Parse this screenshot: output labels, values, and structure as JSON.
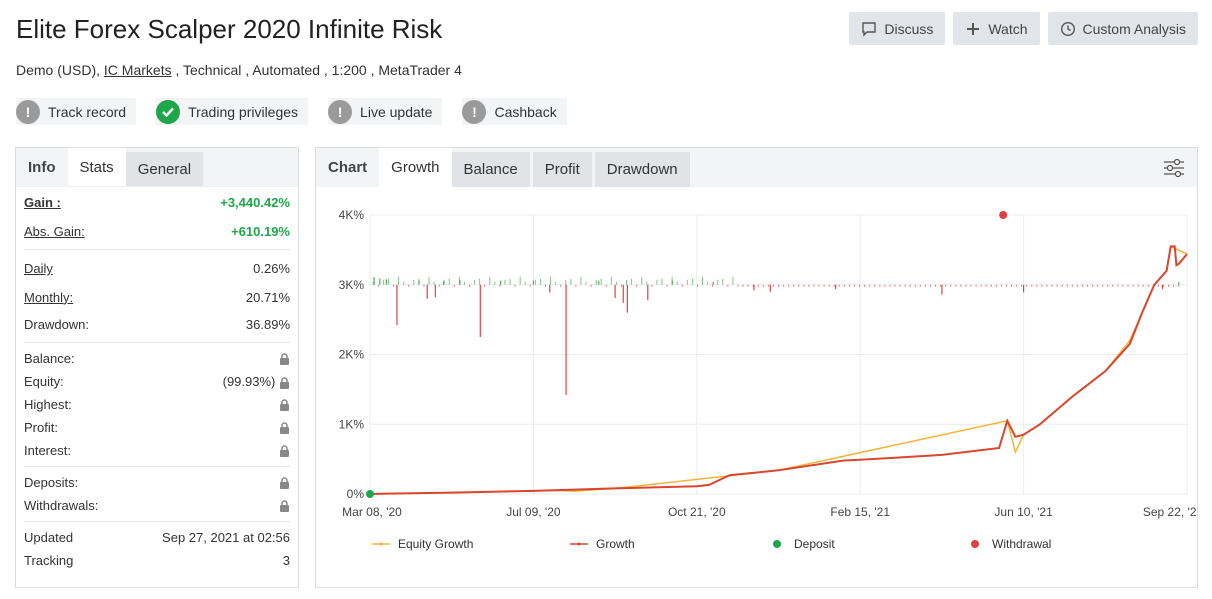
{
  "header": {
    "title": "Elite Forex Scalper 2020 Infinite Risk",
    "subtitle_pre": "Demo (USD),",
    "broker": "IC Markets",
    "subtitle_post": ", Technical , Automated , 1:200 , MetaTrader 4"
  },
  "actions": {
    "discuss": "Discuss",
    "watch": "Watch",
    "custom_analysis": "Custom Analysis"
  },
  "badges": [
    {
      "label": "Track record",
      "status": "warning"
    },
    {
      "label": "Trading privileges",
      "status": "verified"
    },
    {
      "label": "Live update",
      "status": "warning"
    },
    {
      "label": "Cashback",
      "status": "warning"
    }
  ],
  "left_tabs": {
    "info": "Info",
    "stats": "Stats",
    "general": "General"
  },
  "stats": {
    "gain_label": "Gain :",
    "gain": "+3,440.42%",
    "abs_gain_label": "Abs. Gain:",
    "abs_gain": "+610.19%",
    "daily_label": "Daily",
    "daily": "0.26%",
    "monthly_label": "Monthly:",
    "monthly": "20.71%",
    "drawdown_label": "Drawdown:",
    "drawdown": "36.89%",
    "balance_label": "Balance:",
    "equity_label": "Equity:",
    "equity": "(99.93%)",
    "highest_label": "Highest:",
    "profit_label": "Profit:",
    "interest_label": "Interest:",
    "deposits_label": "Deposits:",
    "withdrawals_label": "Withdrawals:",
    "updated_label": "Updated",
    "updated": "Sep 27, 2021 at 02:56",
    "tracking_label": "Tracking",
    "tracking": "3"
  },
  "chart_tabs": {
    "chart": "Chart",
    "growth": "Growth",
    "balance": "Balance",
    "profit": "Profit",
    "drawdown": "Drawdown"
  },
  "chart_data": {
    "type": "line",
    "x_ticks": [
      "Mar 08, '20",
      "Jul 09, '20",
      "Oct 21, '20",
      "Feb 15, '21",
      "Jun 10, '21",
      "Sep 22, '21"
    ],
    "y_ticks": [
      "0%",
      "1K%",
      "2K%",
      "3K%",
      "4K%"
    ],
    "ylim": [
      0,
      4000
    ],
    "series": [
      {
        "name": "Growth",
        "color": "#d9472f",
        "x": [
          0,
          0.1,
          0.2,
          0.3,
          0.4,
          0.415,
          0.44,
          0.5,
          0.58,
          0.6,
          0.7,
          0.77,
          0.78,
          0.79,
          0.8,
          0.82,
          0.86,
          0.9,
          0.93,
          0.945,
          0.96,
          0.975,
          0.98,
          0.985,
          0.987,
          0.99,
          1.0
        ],
        "y": [
          0,
          20,
          45,
          80,
          110,
          130,
          270,
          340,
          480,
          490,
          560,
          660,
          1050,
          820,
          850,
          1000,
          1400,
          1760,
          2150,
          2600,
          3000,
          3200,
          3550,
          3550,
          3280,
          3300,
          3440
        ]
      },
      {
        "name": "Equity Growth",
        "color": "#f2b43a",
        "x": [
          0,
          0.1,
          0.23,
          0.25,
          0.3,
          0.5,
          0.78,
          0.79,
          0.8,
          0.82,
          0.86,
          0.9,
          0.93,
          0.945,
          0.96,
          0.975,
          0.98,
          1.0
        ],
        "y": [
          0,
          20,
          50,
          40,
          80,
          340,
          1050,
          600,
          850,
          1000,
          1400,
          1760,
          2200,
          2600,
          3000,
          3200,
          3550,
          3440
        ]
      }
    ],
    "deposit": {
      "name": "Deposit",
      "color": "#1ea64b",
      "x": 0,
      "y": 0
    },
    "withdrawal": {
      "name": "Withdrawal",
      "color": "#e04040",
      "x": 0.775,
      "y": 4000
    },
    "bars_baseline": 3000,
    "bars_up_color": "#4caf50",
    "bars_down_color": "#e04040",
    "bars": [
      {
        "x": 0.005,
        "h": 110
      },
      {
        "x": 0.012,
        "h": 90
      },
      {
        "x": 0.02,
        "h": 80
      },
      {
        "x": 0.033,
        "h": -580
      },
      {
        "x": 0.06,
        "h": 60
      },
      {
        "x": 0.07,
        "h": -200
      },
      {
        "x": 0.08,
        "h": -180
      },
      {
        "x": 0.09,
        "h": 50
      },
      {
        "x": 0.11,
        "h": 70
      },
      {
        "x": 0.135,
        "h": -750
      },
      {
        "x": 0.16,
        "h": 60
      },
      {
        "x": 0.2,
        "h": 60
      },
      {
        "x": 0.22,
        "h": -110
      },
      {
        "x": 0.24,
        "h": -1580
      },
      {
        "x": 0.28,
        "h": 60
      },
      {
        "x": 0.3,
        "h": -190
      },
      {
        "x": 0.31,
        "h": -260
      },
      {
        "x": 0.315,
        "h": -400
      },
      {
        "x": 0.34,
        "h": -220
      },
      {
        "x": 0.37,
        "h": 60
      },
      {
        "x": 0.42,
        "h": 40
      },
      {
        "x": 0.47,
        "h": -80
      },
      {
        "x": 0.49,
        "h": -100
      },
      {
        "x": 0.57,
        "h": -60
      },
      {
        "x": 0.7,
        "h": -140
      },
      {
        "x": 0.8,
        "h": -110
      },
      {
        "x": 0.97,
        "h": -60
      },
      {
        "x": 0.99,
        "h": 40
      }
    ]
  },
  "legend": {
    "equity_growth": "Equity Growth",
    "growth": "Growth",
    "deposit": "Deposit",
    "withdrawal": "Withdrawal"
  }
}
